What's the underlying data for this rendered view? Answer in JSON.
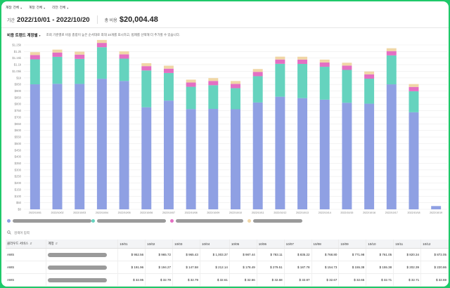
{
  "filters": [
    {
      "label": "계정: 전체"
    },
    {
      "label": "계정: 전체"
    },
    {
      "label": "리전: 전체"
    }
  ],
  "header": {
    "period_label": "기간",
    "period_value": "2022/10/01 - 2022/10/20",
    "total_label": "총 비용",
    "total_value": "$20,004.48"
  },
  "trend": {
    "title": "비용 트렌드 계정별",
    "description": "조회 기준별로 비용 총합이 높은 순서대로 최대 10개를 표시하고, 범례를 선택해 더 추가할 수 있습니다."
  },
  "colors": {
    "s1": "#8fa0e3",
    "s2": "#65d3be",
    "s3": "#e46fc3",
    "s4": "#f0d6a6"
  },
  "chart_data": {
    "type": "bar",
    "stacked": true,
    "categories": [
      "2022/10/01",
      "2022/10/02",
      "2022/10/03",
      "2022/10/04",
      "2022/10/05",
      "2022/10/06",
      "2022/10/07",
      "2022/10/08",
      "2022/10/09",
      "2022/10/10",
      "2022/10/11",
      "2022/10/12",
      "2022/10/13",
      "2022/10/14",
      "2022/10/15",
      "2022/10/16",
      "2022/10/17",
      "2022/10/18",
      "2022/10/19"
    ],
    "series": [
      {
        "values": [
          950.7,
          954.7,
          953.9,
          992.9,
          975.9,
          776.2,
          826.9,
          761.9,
          763.7,
          761.2,
          812.6,
          856.5,
          845.8,
          834.1,
          810.4,
          803.6,
          950.5,
          738.1,
          25
        ]
      },
      {
        "values": [
          190,
          205,
          190,
          240,
          170,
          280,
          210,
          170,
          180,
          160,
          200,
          250,
          260,
          250,
          250,
          190,
          220,
          160,
          0
        ]
      },
      {
        "values": [
          32.9,
          32.8,
          32.8,
          32.6,
          32.7,
          32.7,
          32.8,
          32.7,
          32.7,
          32.7,
          32.7,
          32.7,
          32.7,
          32.7,
          32.7,
          32.7,
          32.7,
          32.7,
          0
        ]
      },
      {
        "values": [
          21.9,
          22.1,
          22.3,
          22.4,
          22.6,
          22.7,
          22.5,
          21.7,
          21.7,
          21.8,
          21.7,
          21.8,
          21.9,
          21.8,
          21.8,
          21.8,
          21.8,
          21.8,
          0
        ]
      }
    ],
    "yticks": [
      "$0",
      "$50",
      "$100",
      "$150",
      "$200",
      "$250",
      "$300",
      "$350",
      "$400",
      "$450",
      "$500",
      "$550",
      "$600",
      "$650",
      "$700",
      "$750",
      "$800",
      "$850",
      "$900",
      "$950",
      "$1k",
      "$1.05k",
      "$1.1k",
      "$1.15k",
      "$1.2k",
      "$1.25k"
    ],
    "ylim": [
      0,
      1250
    ],
    "grid": true
  },
  "search": {
    "placeholder": "검색어 입력"
  },
  "table": {
    "headers": [
      "클라우드 서비스",
      "계정",
      "10/01",
      "10/02",
      "10/03",
      "10/04",
      "10/05",
      "10/06",
      "10/07",
      "10/08",
      "10/09",
      "10/10",
      "10/11",
      "10/12"
    ],
    "rows": [
      {
        "service": "AWS",
        "values": [
          "$ 952.56",
          "$ 965.72",
          "$ 965.43",
          "$ 1,003.37",
          "$ 987.44",
          "$ 783.11",
          "$ 835.22",
          "$ 768.80",
          "$ 771.98",
          "$ 761.05",
          "$ 820.34",
          "$ 872.05"
        ]
      },
      {
        "service": "AWS",
        "values": [
          "$ 191.96",
          "$ 194.27",
          "$ 147.58",
          "$ 212.14",
          "$ 178.49",
          "$ 279.51",
          "$ 187.78",
          "$ 154.73",
          "$ 155.38",
          "$ 155.38",
          "$ 202.39",
          "$ 220.86"
        ]
      },
      {
        "service": "AWS",
        "values": [
          "$ 32.95",
          "$ 32.79",
          "$ 32.79",
          "$ 32.61",
          "$ 32.66",
          "$ 32.68",
          "$ 32.87",
          "$ 32.67",
          "$ 32.65",
          "$ 32.71",
          "$ 32.71",
          "$ 32.69"
        ]
      },
      {
        "service": "AWS",
        "values": [
          "$ 21.89",
          "$ 22.11",
          "$ 22.31",
          "$ 22.44",
          "$ 22.56",
          "$ 22.67",
          "$ 22.52",
          "$ 21.71",
          "$ 21.74",
          "$ 21.84",
          "$ 21.69",
          "$ 21.80"
        ]
      }
    ]
  }
}
